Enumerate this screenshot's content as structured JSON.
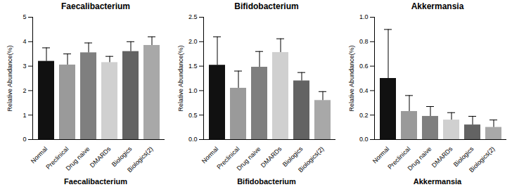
{
  "chart_data": [
    {
      "type": "bar",
      "title": "Faecalibacterium",
      "caption": "Faecalibacterium",
      "ylabel": "Relative Abundance(%)",
      "categories": [
        "Normal",
        "Preclinical",
        "Drug naive",
        "DMARDs",
        "Biologics",
        "Biologics(2)"
      ],
      "values": [
        3.2,
        3.05,
        3.55,
        3.15,
        3.6,
        3.85
      ],
      "errors": [
        0.55,
        0.45,
        0.4,
        0.25,
        0.4,
        0.35
      ],
      "colors": [
        "#111111",
        "#9a9a9a",
        "#7f7f7f",
        "#d0d0d0",
        "#636363",
        "#a8a8a8"
      ],
      "ylim": [
        0,
        5
      ],
      "yticks": [
        0,
        1,
        2,
        3,
        4,
        5
      ]
    },
    {
      "type": "bar",
      "title": "Bifidobacterium",
      "caption": "Bifidobacterium",
      "ylabel": "Relative Abundance(%)",
      "categories": [
        "Normal",
        "Preclinical",
        "Drug naive",
        "DMARDs",
        "Biologics",
        "Biologics(2)"
      ],
      "values": [
        1.52,
        1.05,
        1.48,
        1.78,
        1.2,
        0.8
      ],
      "errors": [
        0.58,
        0.35,
        0.32,
        0.28,
        0.17,
        0.18
      ],
      "colors": [
        "#111111",
        "#9a9a9a",
        "#7f7f7f",
        "#d0d0d0",
        "#636363",
        "#a8a8a8"
      ],
      "ylim": [
        0,
        2.5
      ],
      "yticks": [
        {
          "value": 0,
          "label": "0.0"
        },
        0.5,
        {
          "value": 1,
          "label": "1.0"
        },
        1.5,
        {
          "value": 2,
          "label": "2.0"
        },
        2.5
      ]
    },
    {
      "type": "bar",
      "title": "Akkermansia",
      "caption": "Akkermansia",
      "ylabel": "Relative Abundance(%)",
      "categories": [
        "Normal",
        "Preclinical",
        "Drug naive",
        "DMARDs",
        "Biologics",
        "Biologics(2)"
      ],
      "values": [
        0.5,
        0.23,
        0.19,
        0.16,
        0.12,
        0.1
      ],
      "errors": [
        0.4,
        0.13,
        0.08,
        0.06,
        0.07,
        0.06
      ],
      "colors": [
        "#111111",
        "#9a9a9a",
        "#7f7f7f",
        "#d0d0d0",
        "#636363",
        "#a8a8a8"
      ],
      "ylim": [
        0,
        1
      ],
      "yticks": [
        {
          "value": 0,
          "label": "0.0"
        },
        0.2,
        0.4,
        0.6,
        0.8,
        {
          "value": 1,
          "label": "1.0"
        }
      ]
    }
  ]
}
